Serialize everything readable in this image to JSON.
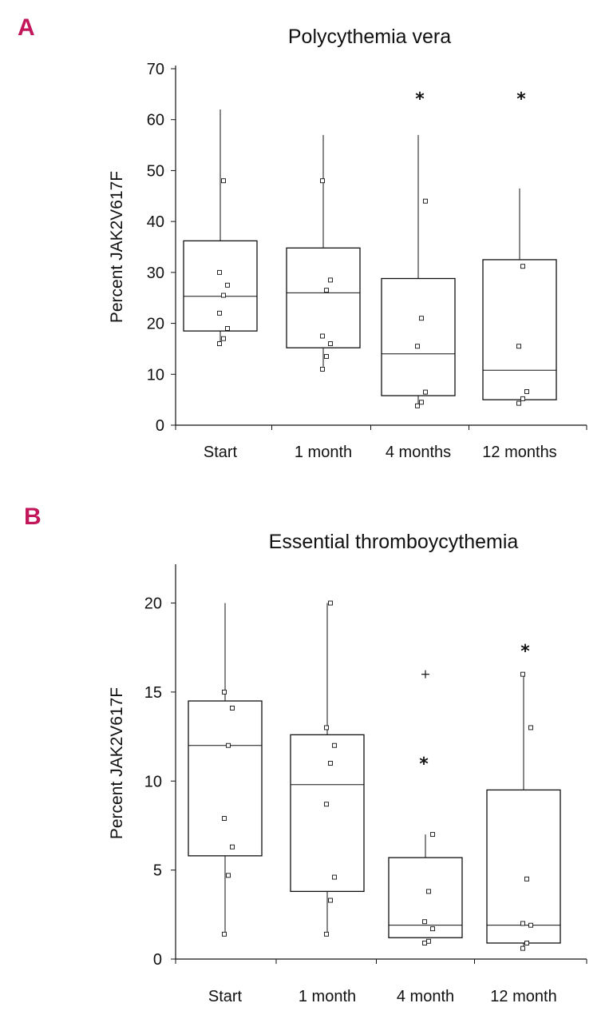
{
  "colors": {
    "panel_letter": "#c2185b",
    "ink": "#111111"
  },
  "chart_data": [
    {
      "panel": "A",
      "type": "boxplot",
      "title": "Polycythemia vera",
      "xlabel": "",
      "ylabel": "Percent JAK2V617F",
      "ylim": [
        0,
        70
      ],
      "yticks": [
        0,
        10,
        20,
        30,
        40,
        50,
        60,
        70
      ],
      "categories": [
        "Start",
        "1 month",
        "4 months",
        "12 months"
      ],
      "boxes": [
        {
          "min": 16,
          "q1": 18.5,
          "median": 25.3,
          "q3": 36.2,
          "max": 62,
          "points": [
            16,
            17,
            19,
            22,
            25.5,
            27.5,
            30,
            48
          ],
          "significant": false
        },
        {
          "min": 11.5,
          "q1": 15.2,
          "median": 26,
          "q3": 34.8,
          "max": 57,
          "points": [
            11,
            13.5,
            16,
            17.5,
            26.5,
            28.5,
            48
          ],
          "significant": false
        },
        {
          "min": 4,
          "q1": 5.8,
          "median": 14,
          "q3": 28.8,
          "max": 57,
          "points": [
            3.8,
            4.5,
            6.5,
            15.5,
            21,
            44
          ],
          "significant": true,
          "marker": "*"
        },
        {
          "min": 5,
          "q1": 5,
          "median": 10.8,
          "q3": 32.5,
          "max": 46.5,
          "points": [
            4.3,
            5.2,
            6.6,
            15.5,
            31.2
          ],
          "significant": true,
          "marker": "*"
        }
      ]
    },
    {
      "panel": "B",
      "type": "boxplot",
      "title": "Essential thromboycythemia",
      "xlabel": "",
      "ylabel": "Percent JAK2V617F",
      "ylim": [
        0,
        22
      ],
      "yticks": [
        0,
        5,
        10,
        15,
        20
      ],
      "categories": [
        "Start",
        "1 month",
        "4 month",
        "12 month"
      ],
      "boxes": [
        {
          "min": 1.3,
          "q1": 5.8,
          "median": 12,
          "q3": 14.5,
          "max": 20,
          "points": [
            1.4,
            4.7,
            6.3,
            7.9,
            12,
            14.1,
            15
          ],
          "significant": false
        },
        {
          "min": 1.3,
          "q1": 3.8,
          "median": 9.8,
          "q3": 12.6,
          "max": 20,
          "points": [
            1.4,
            3.3,
            4.6,
            8.7,
            11,
            12,
            13,
            20
          ],
          "significant": false
        },
        {
          "min": 1.2,
          "q1": 1.2,
          "median": 1.9,
          "q3": 5.7,
          "max": 7,
          "points": [
            0.9,
            1.0,
            1.7,
            2.1,
            3.8,
            7
          ],
          "significant": true,
          "marker": "*",
          "outlier_plus": 16
        },
        {
          "min": 0.6,
          "q1": 0.9,
          "median": 1.9,
          "q3": 9.5,
          "max": 16,
          "points": [
            0.6,
            0.9,
            1.9,
            2.0,
            4.5,
            13,
            16
          ],
          "significant": true,
          "marker": "*"
        }
      ]
    }
  ]
}
